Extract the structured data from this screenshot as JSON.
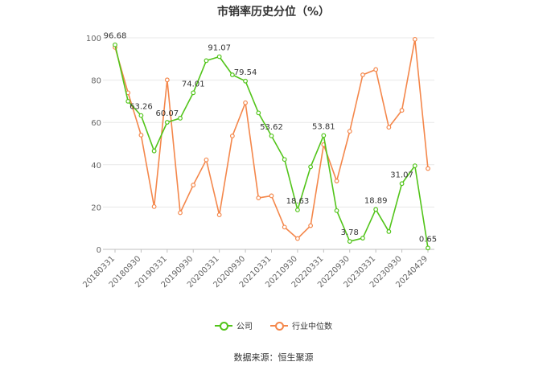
{
  "chart_data": {
    "type": "line",
    "title": "市销率历史分位（%）",
    "ylim": [
      0,
      100
    ],
    "yticks": [
      0,
      20,
      40,
      60,
      80,
      100
    ],
    "xtick_labels": [
      "20180331",
      "20180930",
      "20190331",
      "20190930",
      "20200331",
      "20200930",
      "20210331",
      "20210930",
      "20220331",
      "20220930",
      "20230331",
      "20230930",
      "20240429"
    ],
    "xtick_indices": [
      0,
      2,
      4,
      6,
      8,
      10,
      12,
      14,
      16,
      18,
      20,
      22,
      24
    ],
    "x_count": 25,
    "grid": true,
    "legend_position": "bottom",
    "series": [
      {
        "name": "公司",
        "color": "#52c41a",
        "values": [
          96.68,
          70,
          63.26,
          46.5,
          60.07,
          62,
          74.01,
          89.2,
          91.07,
          82.5,
          79.54,
          64.5,
          53.62,
          42.5,
          18.63,
          39,
          53.81,
          18.3,
          3.78,
          5.3,
          18.89,
          8.4,
          31.07,
          39.5,
          0.65
        ],
        "labeled_points": [
          0,
          2,
          4,
          6,
          8,
          10,
          12,
          14,
          16,
          18,
          20,
          22,
          24
        ]
      },
      {
        "name": "行业中位数",
        "color": "#f4874b",
        "values": [
          95.5,
          74,
          54,
          20.2,
          80.1,
          17.3,
          30.4,
          42.3,
          16.3,
          53.6,
          69.3,
          24.3,
          25.3,
          10.5,
          5.1,
          11.2,
          49.5,
          32.3,
          55.8,
          82.5,
          85,
          57.7,
          65.7,
          99.3,
          38.2
        ]
      }
    ]
  },
  "source": "数据来源：恒生聚源"
}
